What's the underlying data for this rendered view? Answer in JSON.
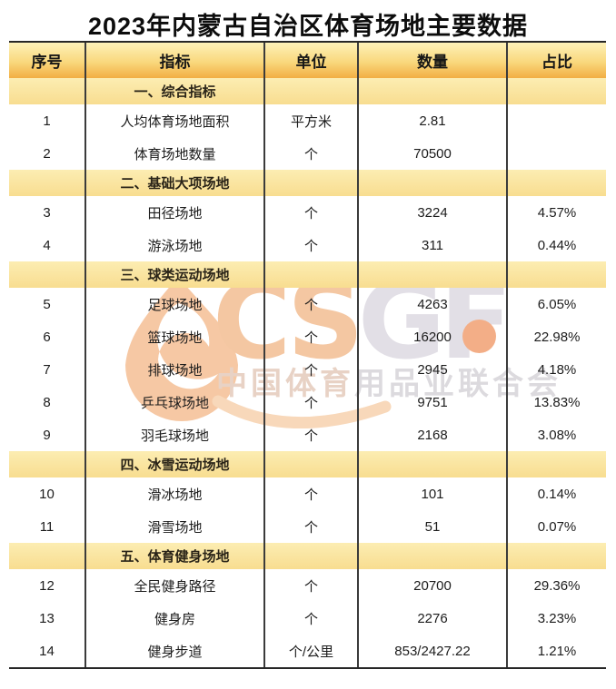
{
  "title": "2023年内蒙古自治区体育场地主要数据",
  "chart_data": {
    "type": "table",
    "title": "2023年内蒙古自治区体育场地主要数据",
    "columns": [
      "序号",
      "指标",
      "单位",
      "数量",
      "占比"
    ],
    "rows": [
      {
        "type": "section",
        "label": "一、综合指标"
      },
      {
        "type": "data",
        "no": "1",
        "indicator": "人均体育场地面积",
        "unit": "平方米",
        "qty": "2.81",
        "pct": ""
      },
      {
        "type": "data",
        "no": "2",
        "indicator": "体育场地数量",
        "unit": "个",
        "qty": "70500",
        "pct": ""
      },
      {
        "type": "section",
        "label": "二、基础大项场地"
      },
      {
        "type": "data",
        "no": "3",
        "indicator": "田径场地",
        "unit": "个",
        "qty": "3224",
        "pct": "4.57%"
      },
      {
        "type": "data",
        "no": "4",
        "indicator": "游泳场地",
        "unit": "个",
        "qty": "311",
        "pct": "0.44%"
      },
      {
        "type": "section",
        "label": "三、球类运动场地"
      },
      {
        "type": "data",
        "no": "5",
        "indicator": "足球场地",
        "unit": "个",
        "qty": "4263",
        "pct": "6.05%"
      },
      {
        "type": "data",
        "no": "6",
        "indicator": "篮球场地",
        "unit": "个",
        "qty": "16200",
        "pct": "22.98%"
      },
      {
        "type": "data",
        "no": "7",
        "indicator": "排球场地",
        "unit": "个",
        "qty": "2945",
        "pct": "4.18%"
      },
      {
        "type": "data",
        "no": "8",
        "indicator": "乒乓球场地",
        "unit": "个",
        "qty": "9751",
        "pct": "13.83%"
      },
      {
        "type": "data",
        "no": "9",
        "indicator": "羽毛球场地",
        "unit": "个",
        "qty": "2168",
        "pct": "3.08%"
      },
      {
        "type": "section",
        "label": "四、冰雪运动场地"
      },
      {
        "type": "data",
        "no": "10",
        "indicator": "滑冰场地",
        "unit": "个",
        "qty": "101",
        "pct": "0.14%"
      },
      {
        "type": "data",
        "no": "11",
        "indicator": "滑雪场地",
        "unit": "个",
        "qty": "51",
        "pct": "0.07%"
      },
      {
        "type": "section",
        "label": "五、体育健身场地"
      },
      {
        "type": "data",
        "no": "12",
        "indicator": "全民健身路径",
        "unit": "个",
        "qty": "20700",
        "pct": "29.36%"
      },
      {
        "type": "data",
        "no": "13",
        "indicator": "健身房",
        "unit": "个",
        "qty": "2276",
        "pct": "3.23%"
      },
      {
        "type": "data",
        "no": "14",
        "indicator": "健身步道",
        "unit": "个/公里",
        "qty": "853/2427.22",
        "pct": "1.21%"
      }
    ]
  },
  "watermark": {
    "logo_part1": "CS",
    "logo_part2": "GF",
    "cn_part1": "中国体育",
    "cn_part2": "用品业联合会"
  },
  "colors": {
    "header_gradient_top": "#fdf1b8",
    "header_gradient_bottom": "#f2ae43",
    "section_row_bg": "#f9e09a",
    "table_border": "#3b3b3b",
    "watermark_peach": "#f4c7a2",
    "watermark_gray": "#e2dfe6",
    "watermark_dot": "#f3ae87"
  }
}
